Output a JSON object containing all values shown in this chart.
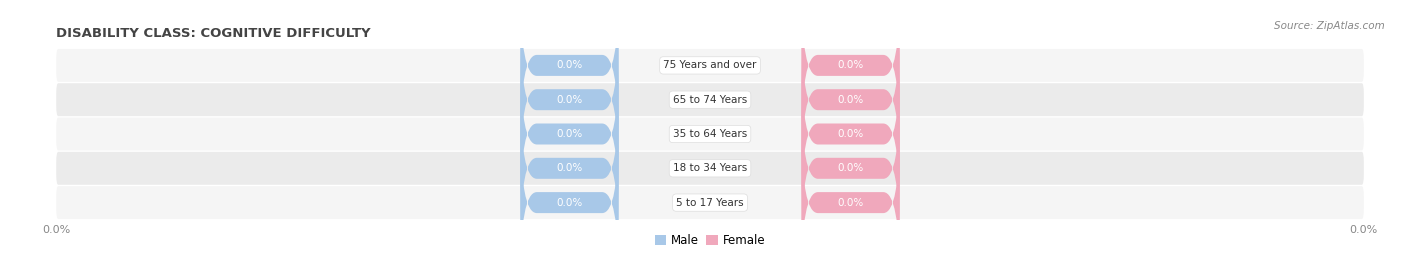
{
  "title": "DISABILITY CLASS: COGNITIVE DIFFICULTY",
  "source": "Source: ZipAtlas.com",
  "categories": [
    "5 to 17 Years",
    "18 to 34 Years",
    "35 to 64 Years",
    "65 to 74 Years",
    "75 Years and over"
  ],
  "male_values": [
    0.0,
    0.0,
    0.0,
    0.0,
    0.0
  ],
  "female_values": [
    0.0,
    0.0,
    0.0,
    0.0,
    0.0
  ],
  "male_color": "#a8c8e8",
  "female_color": "#f0a8bc",
  "row_bg_even": "#f5f5f5",
  "row_bg_odd": "#ebebeb",
  "title_fontsize": 9.5,
  "source_fontsize": 7.5,
  "label_fontsize": 7.5,
  "value_fontsize": 7.5,
  "x_tick_label_left": "0.0%",
  "x_tick_label_right": "0.0%",
  "legend_male": "Male",
  "legend_female": "Female",
  "center_label_color": "#333333",
  "value_text_color": "#ffffff",
  "tick_label_color": "#888888"
}
